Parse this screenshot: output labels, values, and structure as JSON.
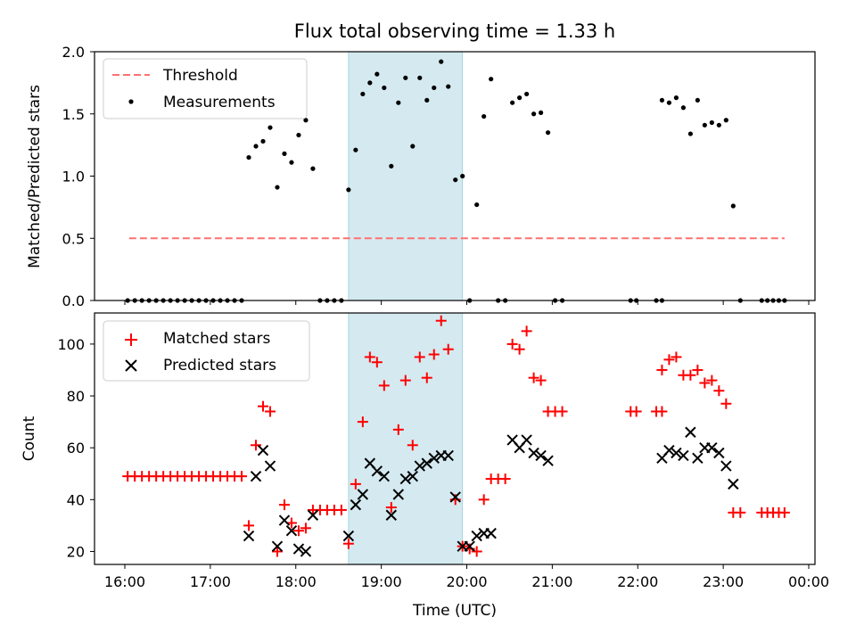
{
  "chart_data": [
    {
      "type": "scatter",
      "title": "Flux total observing time = 1.33 h",
      "xlabel": "",
      "ylabel": "Matched/Predicted stars",
      "xlim": [
        "16:00",
        "00:00"
      ],
      "ylim": [
        0,
        2.0
      ],
      "y_ticks": [
        "0.0",
        "0.5",
        "1.0",
        "1.5",
        "2.0"
      ],
      "legend_position": "top-left",
      "shaded_interval": {
        "start": "18:37",
        "end": "19:57",
        "color": "#d4eaf0"
      },
      "series": [
        {
          "name": "Threshold",
          "style": "dashed-line",
          "color": "#ff7070",
          "points": [
            [
              "16:03",
              0.5
            ],
            [
              "23:43",
              0.5
            ]
          ]
        },
        {
          "name": "Measurements",
          "style": "dot",
          "color": "#000000",
          "points": [
            [
              "16:02",
              0
            ],
            [
              "16:07",
              0
            ],
            [
              "16:12",
              0
            ],
            [
              "16:17",
              0
            ],
            [
              "16:22",
              0
            ],
            [
              "16:27",
              0
            ],
            [
              "16:32",
              0
            ],
            [
              "16:37",
              0
            ],
            [
              "16:42",
              0
            ],
            [
              "16:47",
              0
            ],
            [
              "16:52",
              0
            ],
            [
              "16:57",
              0
            ],
            [
              "17:02",
              0
            ],
            [
              "17:07",
              0
            ],
            [
              "17:12",
              0
            ],
            [
              "17:17",
              0
            ],
            [
              "17:22",
              0
            ],
            [
              "17:27",
              1.15
            ],
            [
              "17:32",
              1.24
            ],
            [
              "17:37",
              1.28
            ],
            [
              "17:42",
              1.39
            ],
            [
              "17:47",
              0.91
            ],
            [
              "17:52",
              1.18
            ],
            [
              "17:57",
              1.11
            ],
            [
              "18:02",
              1.33
            ],
            [
              "18:07",
              1.45
            ],
            [
              "18:12",
              1.06
            ],
            [
              "18:17",
              0
            ],
            [
              "18:22",
              0
            ],
            [
              "18:27",
              0
            ],
            [
              "18:32",
              0
            ],
            [
              "18:37",
              0.89
            ],
            [
              "18:42",
              1.21
            ],
            [
              "18:47",
              1.66
            ],
            [
              "18:52",
              1.75
            ],
            [
              "18:57",
              1.82
            ],
            [
              "19:02",
              1.71
            ],
            [
              "19:07",
              1.08
            ],
            [
              "19:12",
              1.59
            ],
            [
              "19:17",
              1.79
            ],
            [
              "19:22",
              1.24
            ],
            [
              "19:27",
              1.79
            ],
            [
              "19:32",
              1.61
            ],
            [
              "19:37",
              1.71
            ],
            [
              "19:42",
              1.92
            ],
            [
              "19:47",
              1.72
            ],
            [
              "19:52",
              0.97
            ],
            [
              "19:57",
              1.0
            ],
            [
              "20:02",
              0
            ],
            [
              "20:07",
              0.77
            ],
            [
              "20:12",
              1.48
            ],
            [
              "20:17",
              1.78
            ],
            [
              "20:22",
              0
            ],
            [
              "20:27",
              0
            ],
            [
              "20:32",
              1.59
            ],
            [
              "20:37",
              1.63
            ],
            [
              "20:42",
              1.66
            ],
            [
              "20:47",
              1.5
            ],
            [
              "20:52",
              1.51
            ],
            [
              "20:57",
              1.35
            ],
            [
              "21:02",
              0
            ],
            [
              "21:07",
              0
            ],
            [
              "21:55",
              0
            ],
            [
              "21:59",
              0
            ],
            [
              "22:13",
              0
            ],
            [
              "22:17",
              0
            ],
            [
              "22:17",
              1.61
            ],
            [
              "22:22",
              1.59
            ],
            [
              "22:27",
              1.63
            ],
            [
              "22:32",
              1.55
            ],
            [
              "22:37",
              1.34
            ],
            [
              "22:42",
              1.61
            ],
            [
              "22:47",
              1.41
            ],
            [
              "22:52",
              1.43
            ],
            [
              "22:57",
              1.41
            ],
            [
              "23:02",
              1.45
            ],
            [
              "23:07",
              0.76
            ],
            [
              "23:12",
              0
            ],
            [
              "23:27",
              0
            ],
            [
              "23:31",
              0
            ],
            [
              "23:35",
              0
            ],
            [
              "23:39",
              0
            ],
            [
              "23:43",
              0
            ]
          ]
        }
      ]
    },
    {
      "type": "scatter",
      "title": "",
      "xlabel": "Time (UTC)",
      "ylabel": "Count",
      "xlim": [
        "16:00",
        "00:00"
      ],
      "x_ticks": [
        "16:00",
        "17:00",
        "18:00",
        "19:00",
        "20:00",
        "21:00",
        "22:00",
        "23:00",
        "00:00"
      ],
      "ylim": [
        15,
        112
      ],
      "y_ticks": [
        "20",
        "40",
        "60",
        "80",
        "100"
      ],
      "legend_position": "top-left",
      "shaded_interval": {
        "start": "18:37",
        "end": "19:57",
        "color": "#d4eaf0"
      },
      "series": [
        {
          "name": "Matched stars",
          "style": "plus",
          "color": "#ff0000",
          "points": [
            [
              "16:02",
              49
            ],
            [
              "16:07",
              49
            ],
            [
              "16:12",
              49
            ],
            [
              "16:17",
              49
            ],
            [
              "16:22",
              49
            ],
            [
              "16:27",
              49
            ],
            [
              "16:32",
              49
            ],
            [
              "16:37",
              49
            ],
            [
              "16:42",
              49
            ],
            [
              "16:47",
              49
            ],
            [
              "16:52",
              49
            ],
            [
              "16:57",
              49
            ],
            [
              "17:02",
              49
            ],
            [
              "17:07",
              49
            ],
            [
              "17:12",
              49
            ],
            [
              "17:17",
              49
            ],
            [
              "17:22",
              49
            ],
            [
              "17:27",
              30
            ],
            [
              "17:32",
              61
            ],
            [
              "17:37",
              76
            ],
            [
              "17:42",
              74
            ],
            [
              "17:47",
              20
            ],
            [
              "17:52",
              38
            ],
            [
              "17:57",
              31
            ],
            [
              "18:02",
              28
            ],
            [
              "18:07",
              29
            ],
            [
              "18:12",
              36
            ],
            [
              "18:17",
              36
            ],
            [
              "18:22",
              36
            ],
            [
              "18:27",
              36
            ],
            [
              "18:32",
              36
            ],
            [
              "18:37",
              23
            ],
            [
              "18:42",
              46
            ],
            [
              "18:47",
              70
            ],
            [
              "18:52",
              95
            ],
            [
              "18:57",
              93
            ],
            [
              "19:02",
              84
            ],
            [
              "19:07",
              37
            ],
            [
              "19:12",
              67
            ],
            [
              "19:17",
              86
            ],
            [
              "19:22",
              61
            ],
            [
              "19:27",
              95
            ],
            [
              "19:32",
              87
            ],
            [
              "19:37",
              96
            ],
            [
              "19:42",
              109
            ],
            [
              "19:47",
              98
            ],
            [
              "19:52",
              40
            ],
            [
              "19:57",
              22
            ],
            [
              "20:02",
              21
            ],
            [
              "20:07",
              20
            ],
            [
              "20:12",
              40
            ],
            [
              "20:17",
              48
            ],
            [
              "20:22",
              48
            ],
            [
              "20:27",
              48
            ],
            [
              "20:32",
              100
            ],
            [
              "20:37",
              98
            ],
            [
              "20:42",
              105
            ],
            [
              "20:47",
              87
            ],
            [
              "20:52",
              86
            ],
            [
              "20:57",
              74
            ],
            [
              "21:02",
              74
            ],
            [
              "21:07",
              74
            ],
            [
              "21:55",
              74
            ],
            [
              "21:59",
              74
            ],
            [
              "22:13",
              74
            ],
            [
              "22:17",
              74
            ],
            [
              "22:17",
              90
            ],
            [
              "22:22",
              94
            ],
            [
              "22:27",
              95
            ],
            [
              "22:32",
              88
            ],
            [
              "22:37",
              88
            ],
            [
              "22:42",
              90
            ],
            [
              "22:47",
              85
            ],
            [
              "22:52",
              86
            ],
            [
              "22:57",
              82
            ],
            [
              "23:02",
              77
            ],
            [
              "23:07",
              35
            ],
            [
              "23:12",
              35
            ],
            [
              "23:27",
              35
            ],
            [
              "23:31",
              35
            ],
            [
              "23:35",
              35
            ],
            [
              "23:39",
              35
            ],
            [
              "23:43",
              35
            ]
          ]
        },
        {
          "name": "Predicted stars",
          "style": "x",
          "color": "#000000",
          "points": [
            [
              "17:27",
              26
            ],
            [
              "17:32",
              49
            ],
            [
              "17:37",
              59
            ],
            [
              "17:42",
              53
            ],
            [
              "17:47",
              22
            ],
            [
              "17:52",
              32
            ],
            [
              "17:57",
              28
            ],
            [
              "18:02",
              21
            ],
            [
              "18:07",
              20
            ],
            [
              "18:12",
              34
            ],
            [
              "18:37",
              26
            ],
            [
              "18:42",
              38
            ],
            [
              "18:47",
              42
            ],
            [
              "18:52",
              54
            ],
            [
              "18:57",
              51
            ],
            [
              "19:02",
              49
            ],
            [
              "19:07",
              34
            ],
            [
              "19:12",
              42
            ],
            [
              "19:17",
              48
            ],
            [
              "19:22",
              49
            ],
            [
              "19:27",
              53
            ],
            [
              "19:32",
              54
            ],
            [
              "19:37",
              56
            ],
            [
              "19:42",
              57
            ],
            [
              "19:47",
              57
            ],
            [
              "19:52",
              41
            ],
            [
              "19:57",
              22
            ],
            [
              "20:02",
              22
            ],
            [
              "20:07",
              26
            ],
            [
              "20:12",
              27
            ],
            [
              "20:17",
              27
            ],
            [
              "20:32",
              63
            ],
            [
              "20:37",
              60
            ],
            [
              "20:42",
              63
            ],
            [
              "20:47",
              58
            ],
            [
              "20:52",
              57
            ],
            [
              "20:57",
              55
            ],
            [
              "22:17",
              56
            ],
            [
              "22:22",
              59
            ],
            [
              "22:27",
              58
            ],
            [
              "22:32",
              57
            ],
            [
              "22:37",
              66
            ],
            [
              "22:42",
              56
            ],
            [
              "22:47",
              60
            ],
            [
              "22:52",
              60
            ],
            [
              "22:57",
              58
            ],
            [
              "23:02",
              53
            ],
            [
              "23:07",
              46
            ]
          ]
        }
      ]
    }
  ]
}
